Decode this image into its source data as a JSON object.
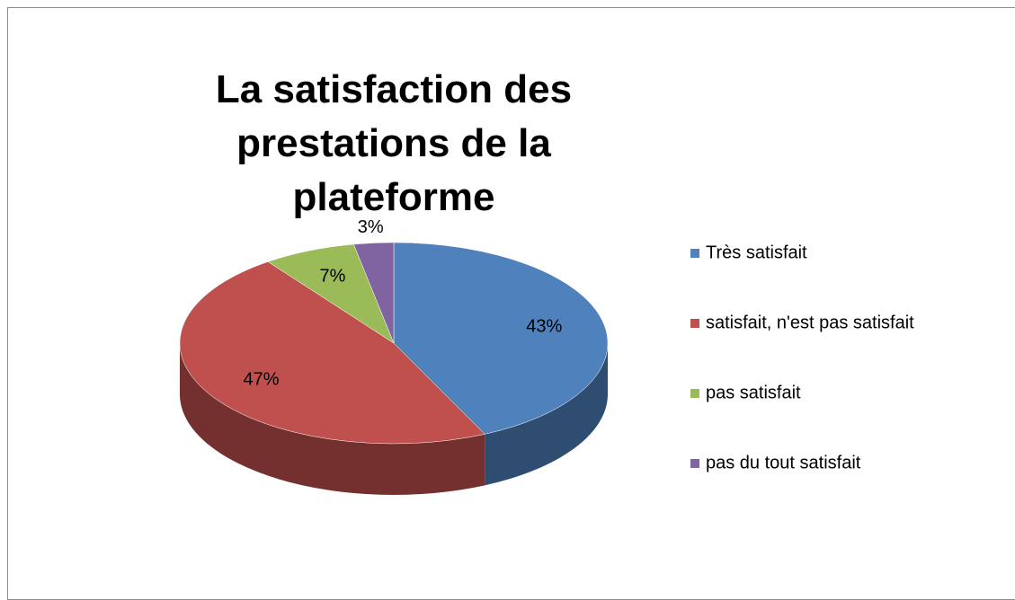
{
  "chart_data": {
    "type": "pie",
    "title": "La satisfaction des prestations de la plateforme",
    "categories": [
      "Très satisfait",
      "satisfait, n'est pas satisfait",
      "pas satisfait",
      "pas du tout satisfait"
    ],
    "values": [
      43,
      47,
      7,
      3
    ],
    "value_labels": [
      "43%",
      "47%",
      "7%",
      "3%"
    ],
    "colors": [
      "#4f81bd",
      "#c0504d",
      "#9bbb59",
      "#8064a2"
    ],
    "legend": "right"
  }
}
